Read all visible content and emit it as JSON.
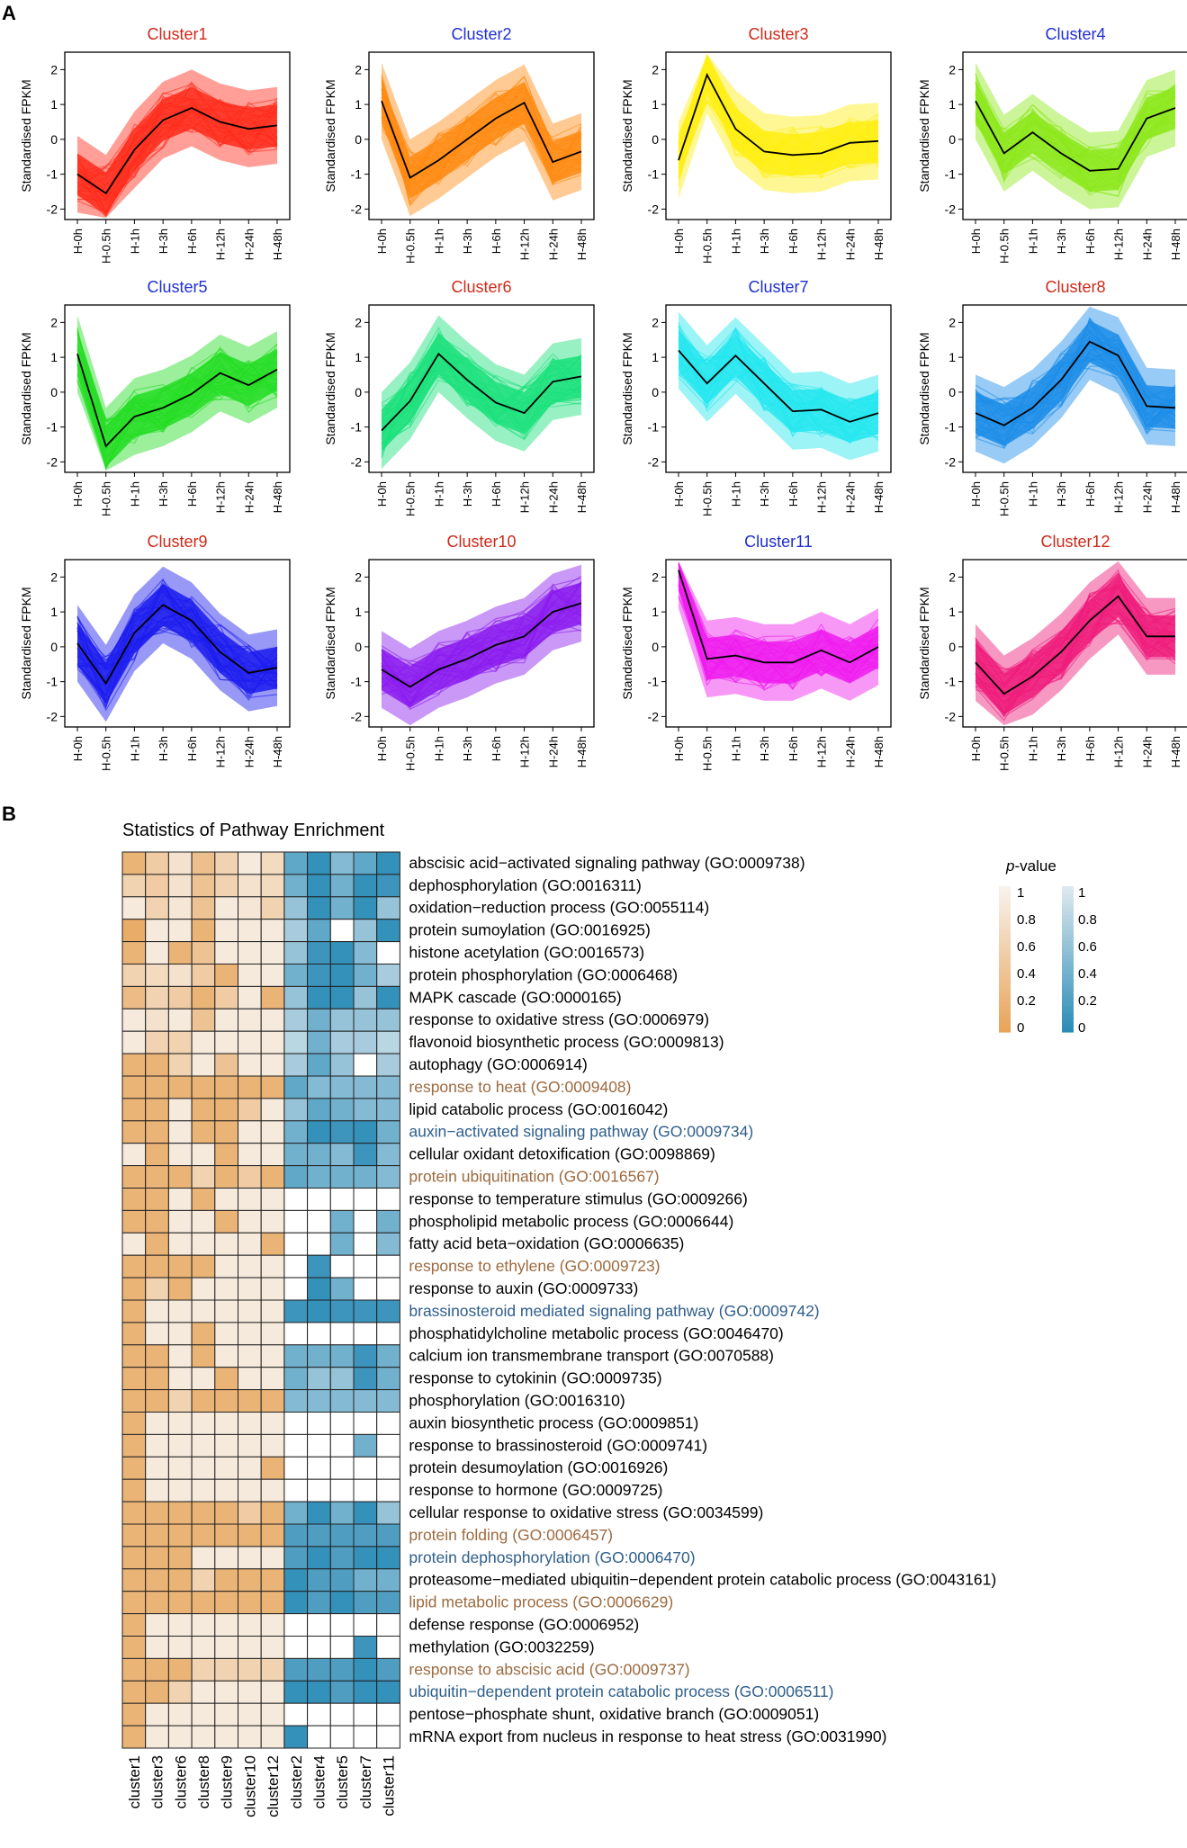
{
  "panel_labels": [
    "A",
    "B"
  ],
  "colors": {
    "warm_low": "#e8a45a",
    "warm_high": "#f7f2ec",
    "cool_low": "#2b8cb7",
    "cool_high": "#dde8ee",
    "term_brown": "#9c6a3f",
    "term_blue": "#2e5e8c",
    "cell_border": "#222222"
  },
  "chart_data": [
    {
      "type": "line",
      "panel": "A",
      "description": "Gene expression clusters",
      "ylabel": "Standardised FPKM",
      "x": [
        "H-0h",
        "H-0.5h",
        "H-1h",
        "H-3h",
        "H-6h",
        "H-12h",
        "H-24h",
        "H-48h"
      ],
      "ylim": [
        -2.3,
        2.5
      ],
      "yticks": [
        -2,
        -1,
        0,
        1,
        2
      ],
      "clusters": [
        {
          "name": "Cluster1",
          "title_color": "#cc2a1a",
          "fill": "#ff2a1a",
          "centroid": [
            -1.0,
            -1.55,
            -0.3,
            0.55,
            0.9,
            0.5,
            0.3,
            0.4
          ]
        },
        {
          "name": "Cluster2",
          "title_color": "#1f2fd0",
          "fill": "#ff8a10",
          "centroid": [
            1.1,
            -1.1,
            -0.6,
            0.0,
            0.6,
            1.05,
            -0.65,
            -0.35
          ]
        },
        {
          "name": "Cluster3",
          "title_color": "#cc2a1a",
          "fill": "#ffee10",
          "centroid": [
            -0.6,
            1.85,
            0.3,
            -0.35,
            -0.45,
            -0.4,
            -0.1,
            -0.05
          ]
        },
        {
          "name": "Cluster4",
          "title_color": "#1f2fd0",
          "fill": "#8ce81a",
          "centroid": [
            1.1,
            -0.4,
            0.2,
            -0.4,
            -0.9,
            -0.85,
            0.6,
            0.9
          ]
        },
        {
          "name": "Cluster5",
          "title_color": "#1f2fd0",
          "fill": "#22dd22",
          "centroid": [
            1.1,
            -1.55,
            -0.7,
            -0.45,
            -0.05,
            0.55,
            0.2,
            0.65
          ]
        },
        {
          "name": "Cluster6",
          "title_color": "#cc2a1a",
          "fill": "#19e07a",
          "centroid": [
            -1.1,
            -0.25,
            1.1,
            0.35,
            -0.3,
            -0.6,
            0.3,
            0.45
          ]
        },
        {
          "name": "Cluster7",
          "title_color": "#1f2fd0",
          "fill": "#22e6ee",
          "centroid": [
            1.2,
            0.25,
            1.05,
            0.25,
            -0.55,
            -0.5,
            -0.85,
            -0.6
          ]
        },
        {
          "name": "Cluster8",
          "title_color": "#cc2a1a",
          "fill": "#1a8ce8",
          "centroid": [
            -0.6,
            -0.95,
            -0.45,
            0.35,
            1.45,
            1.05,
            -0.4,
            -0.45
          ]
        },
        {
          "name": "Cluster9",
          "title_color": "#cc2a1a",
          "fill": "#1a1aee",
          "centroid": [
            0.1,
            -1.05,
            0.4,
            1.2,
            0.75,
            -0.15,
            -0.75,
            -0.6
          ]
        },
        {
          "name": "Cluster10",
          "title_color": "#cc2a1a",
          "fill": "#8a1aee",
          "centroid": [
            -0.65,
            -1.15,
            -0.65,
            -0.35,
            0.05,
            0.3,
            1.0,
            1.25
          ]
        },
        {
          "name": "Cluster11",
          "title_color": "#1f2fd0",
          "fill": "#ee1aee",
          "centroid": [
            2.2,
            -0.35,
            -0.25,
            -0.45,
            -0.45,
            -0.1,
            -0.45,
            0.0
          ]
        },
        {
          "name": "Cluster12",
          "title_color": "#cc2a1a",
          "fill": "#ee1a7a",
          "centroid": [
            -0.45,
            -1.35,
            -0.85,
            -0.15,
            0.75,
            1.45,
            0.3,
            0.3
          ]
        }
      ]
    },
    {
      "type": "heatmap",
      "panel": "B",
      "title": "Statistics of Pathway Enrichment",
      "columns": [
        "cluster1",
        "cluster3",
        "cluster6",
        "cluster8",
        "cluster9",
        "cluster10",
        "cluster12",
        "cluster2",
        "cluster4",
        "cluster5",
        "cluster7",
        "cluster11"
      ],
      "warm_column_count": 7,
      "legend": {
        "title_italic": "p",
        "title_rest": "-value",
        "ticks": [
          "1",
          "0.8",
          "0.6",
          "0.4",
          "0.2",
          "0"
        ],
        "ticks_cool": [
          "1",
          "0.8",
          "0.6",
          "0.4",
          "0.2",
          "0"
        ]
      },
      "rows": [
        {
          "term": "abscisic acid−activated signaling pathway (GO:0009738)",
          "color": "black",
          "values": [
            0.2,
            0.5,
            0.8,
            0.35,
            0.6,
            0.9,
            0.7,
            0.3,
            0.05,
            0.5,
            0.3,
            0.05
          ]
        },
        {
          "term": "dephosphorylation (GO:0016311)",
          "color": "black",
          "values": [
            0.6,
            0.5,
            0.8,
            0.4,
            0.6,
            0.8,
            0.7,
            0.4,
            0.05,
            0.4,
            0.05,
            0.1
          ]
        },
        {
          "term": "oxidation−reduction process (GO:0055114)",
          "color": "black",
          "values": [
            0.9,
            0.6,
            0.85,
            0.4,
            0.9,
            0.85,
            0.6,
            0.6,
            0.05,
            0.4,
            0.05,
            0.6
          ]
        },
        {
          "term": "protein sumoylation (GO:0016925)",
          "color": "black",
          "values": [
            0.1,
            0.9,
            0.9,
            0.2,
            0.9,
            0.9,
            0.9,
            0.7,
            0.3,
            1.0,
            0.6,
            0.05
          ]
        },
        {
          "term": "histone acetylation (GO:0016573)",
          "color": "black",
          "values": [
            0.2,
            0.9,
            0.2,
            0.4,
            0.9,
            0.9,
            0.9,
            0.6,
            0.1,
            0.05,
            0.5,
            1.0
          ]
        },
        {
          "term": "protein phosphorylation (GO:0006468)",
          "color": "black",
          "values": [
            0.6,
            0.7,
            0.8,
            0.5,
            0.2,
            0.9,
            0.9,
            0.4,
            0.1,
            0.05,
            0.4,
            0.7
          ]
        },
        {
          "term": "MAPK cascade (GO:0000165)",
          "color": "black",
          "values": [
            0.3,
            0.6,
            0.5,
            0.2,
            0.5,
            0.9,
            0.2,
            0.6,
            0.05,
            0.05,
            0.6,
            0.05
          ]
        },
        {
          "term": "response to oxidative stress (GO:0006979)",
          "color": "black",
          "values": [
            0.9,
            0.8,
            0.9,
            0.4,
            0.9,
            0.9,
            0.9,
            0.7,
            0.4,
            0.6,
            0.6,
            0.6
          ]
        },
        {
          "term": "flavonoid biosynthetic process (GO:0009813)",
          "color": "black",
          "values": [
            0.9,
            0.6,
            0.6,
            0.9,
            0.9,
            0.9,
            0.9,
            0.8,
            0.4,
            0.7,
            0.7,
            0.8
          ]
        },
        {
          "term": "autophagy (GO:0006914)",
          "color": "black",
          "values": [
            0.2,
            0.2,
            0.6,
            0.9,
            0.4,
            0.9,
            0.9,
            0.7,
            0.3,
            0.6,
            1.0,
            0.7
          ]
        },
        {
          "term": "response to heat (GO:0009408)",
          "color": "brown",
          "values": [
            0.2,
            0.2,
            0.2,
            0.2,
            0.2,
            0.2,
            0.2,
            0.3,
            0.5,
            0.5,
            0.5,
            0.5
          ]
        },
        {
          "term": "lipid catabolic process (GO:0016042)",
          "color": "black",
          "values": [
            0.2,
            0.2,
            0.9,
            0.2,
            0.2,
            0.5,
            0.9,
            0.6,
            0.3,
            0.4,
            0.5,
            0.5
          ]
        },
        {
          "term": "auxin−activated signaling pathway (GO:0009734)",
          "color": "blue",
          "values": [
            0.2,
            0.2,
            0.9,
            0.2,
            0.2,
            0.9,
            0.9,
            0.4,
            0.05,
            0.1,
            0.05,
            0.4
          ]
        },
        {
          "term": "cellular oxidant detoxification (GO:0098869)",
          "color": "black",
          "values": [
            0.9,
            0.2,
            0.9,
            0.9,
            0.2,
            0.9,
            0.9,
            0.4,
            0.4,
            0.5,
            0.1,
            0.5
          ]
        },
        {
          "term": "protein ubiquitination (GO:0016567)",
          "color": "brown",
          "values": [
            0.2,
            0.2,
            0.2,
            0.6,
            0.2,
            0.5,
            0.2,
            0.3,
            0.4,
            0.4,
            0.4,
            0.5
          ]
        },
        {
          "term": "response to temperature stimulus (GO:0009266)",
          "color": "black",
          "values": [
            0.2,
            0.2,
            0.9,
            0.2,
            0.9,
            0.9,
            0.9,
            1.0,
            1.0,
            1.0,
            1.0,
            1.0
          ]
        },
        {
          "term": "phospholipid metabolic process (GO:0006644)",
          "color": "black",
          "values": [
            0.2,
            0.2,
            0.9,
            0.9,
            0.2,
            0.9,
            0.9,
            1.0,
            1.0,
            0.4,
            1.0,
            0.4
          ]
        },
        {
          "term": "fatty acid beta−oxidation (GO:0006635)",
          "color": "black",
          "values": [
            0.9,
            0.2,
            0.9,
            0.9,
            0.9,
            0.9,
            0.2,
            1.0,
            1.0,
            0.4,
            1.0,
            0.5
          ]
        },
        {
          "term": "response to ethylene (GO:0009723)",
          "color": "brown",
          "values": [
            0.2,
            0.2,
            0.2,
            0.2,
            0.9,
            0.9,
            0.9,
            1.0,
            0.1,
            1.0,
            1.0,
            1.0
          ]
        },
        {
          "term": "response to auxin (GO:0009733)",
          "color": "black",
          "values": [
            0.2,
            0.6,
            0.2,
            0.9,
            0.9,
            0.9,
            0.9,
            1.0,
            0.05,
            0.4,
            1.0,
            1.0
          ]
        },
        {
          "term": "brassinosteroid mediated signaling pathway (GO:0009742)",
          "color": "blue",
          "values": [
            0.2,
            0.9,
            0.9,
            0.9,
            0.9,
            0.9,
            0.9,
            0.1,
            0.05,
            0.1,
            0.1,
            0.1
          ]
        },
        {
          "term": "phosphatidylcholine metabolic process (GO:0046470)",
          "color": "black",
          "values": [
            0.2,
            0.9,
            0.9,
            0.2,
            0.9,
            0.9,
            0.9,
            1.0,
            1.0,
            1.0,
            1.0,
            1.0
          ]
        },
        {
          "term": "calcium ion transmembrane transport (GO:0070588)",
          "color": "black",
          "values": [
            0.2,
            0.2,
            0.9,
            0.2,
            0.9,
            0.9,
            0.9,
            0.4,
            0.4,
            0.4,
            0.1,
            0.4
          ]
        },
        {
          "term": "response to cytokinin (GO:0009735)",
          "color": "black",
          "values": [
            0.2,
            0.2,
            0.9,
            0.9,
            0.2,
            0.9,
            0.9,
            0.4,
            0.6,
            0.6,
            0.1,
            0.4
          ]
        },
        {
          "term": "phosphorylation (GO:0016310)",
          "color": "black",
          "values": [
            0.2,
            0.2,
            0.6,
            0.2,
            0.2,
            0.2,
            0.2,
            0.5,
            0.5,
            0.5,
            0.5,
            0.5
          ]
        },
        {
          "term": "auxin biosynthetic process (GO:0009851)",
          "color": "black",
          "values": [
            0.2,
            0.9,
            0.9,
            0.9,
            0.9,
            0.9,
            0.9,
            1.0,
            1.0,
            1.0,
            1.0,
            1.0
          ]
        },
        {
          "term": "response to brassinosteroid (GO:0009741)",
          "color": "black",
          "values": [
            0.2,
            0.9,
            0.9,
            0.9,
            0.9,
            0.9,
            0.9,
            1.0,
            1.0,
            1.0,
            0.4,
            1.0
          ]
        },
        {
          "term": "protein desumoylation (GO:0016926)",
          "color": "black",
          "values": [
            0.2,
            0.9,
            0.9,
            0.9,
            0.9,
            0.9,
            0.2,
            1.0,
            1.0,
            1.0,
            1.0,
            1.0
          ]
        },
        {
          "term": "response to hormone (GO:0009725)",
          "color": "black",
          "values": [
            0.2,
            0.9,
            0.9,
            0.9,
            0.9,
            0.9,
            0.9,
            1.0,
            1.0,
            1.0,
            1.0,
            1.0
          ]
        },
        {
          "term": "cellular response to oxidative stress (GO:0034599)",
          "color": "black",
          "values": [
            0.2,
            0.2,
            0.2,
            0.2,
            0.2,
            0.5,
            0.2,
            0.4,
            0.05,
            0.4,
            0.05,
            0.6
          ]
        },
        {
          "term": "protein folding (GO:0006457)",
          "color": "brown",
          "values": [
            0.2,
            0.2,
            0.2,
            0.2,
            0.2,
            0.2,
            0.2,
            0.2,
            0.2,
            0.2,
            0.2,
            0.2
          ]
        },
        {
          "term": "protein dephosphorylation (GO:0006470)",
          "color": "blue",
          "values": [
            0.2,
            0.2,
            0.2,
            0.9,
            0.9,
            0.9,
            0.9,
            0.2,
            0.05,
            0.2,
            0.05,
            0.05
          ]
        },
        {
          "term": "proteasome−mediated ubiquitin−dependent protein catabolic process (GO:0043161)",
          "color": "black",
          "values": [
            0.2,
            0.2,
            0.2,
            0.6,
            0.2,
            0.2,
            0.2,
            0.05,
            0.2,
            0.2,
            0.4,
            0.4
          ]
        },
        {
          "term": "lipid metabolic process (GO:0006629)",
          "color": "brown",
          "values": [
            0.2,
            0.2,
            0.2,
            0.2,
            0.2,
            0.2,
            0.2,
            0.05,
            0.2,
            0.05,
            0.2,
            0.2
          ]
        },
        {
          "term": "defense response (GO:0006952)",
          "color": "black",
          "values": [
            0.2,
            0.9,
            0.9,
            0.9,
            0.9,
            0.9,
            0.9,
            1.0,
            1.0,
            1.0,
            1.0,
            1.0
          ]
        },
        {
          "term": "methylation (GO:0032259)",
          "color": "black",
          "values": [
            0.2,
            0.9,
            0.9,
            0.9,
            0.9,
            0.9,
            0.9,
            1.0,
            1.0,
            1.0,
            0.1,
            1.0
          ]
        },
        {
          "term": "response to abscisic acid (GO:0009737)",
          "color": "brown",
          "values": [
            0.2,
            0.2,
            0.2,
            0.6,
            0.6,
            0.6,
            0.6,
            0.2,
            0.2,
            0.2,
            0.05,
            0.2
          ]
        },
        {
          "term": "ubiquitin−dependent protein catabolic process (GO:0006511)",
          "color": "blue",
          "values": [
            0.2,
            0.2,
            0.6,
            0.9,
            0.9,
            0.9,
            0.9,
            0.05,
            0.05,
            0.2,
            0.05,
            0.05
          ]
        },
        {
          "term": "pentose−phosphate shunt, oxidative branch (GO:0009051)",
          "color": "black",
          "values": [
            0.2,
            0.9,
            0.9,
            0.9,
            0.9,
            0.9,
            0.9,
            1.0,
            1.0,
            1.0,
            1.0,
            1.0
          ]
        },
        {
          "term": "mRNA export from nucleus in response to heat stress (GO:0031990)",
          "color": "black",
          "values": [
            0.2,
            0.9,
            0.9,
            0.9,
            0.9,
            0.9,
            0.9,
            0.05,
            1.0,
            1.0,
            1.0,
            1.0
          ]
        }
      ]
    }
  ]
}
